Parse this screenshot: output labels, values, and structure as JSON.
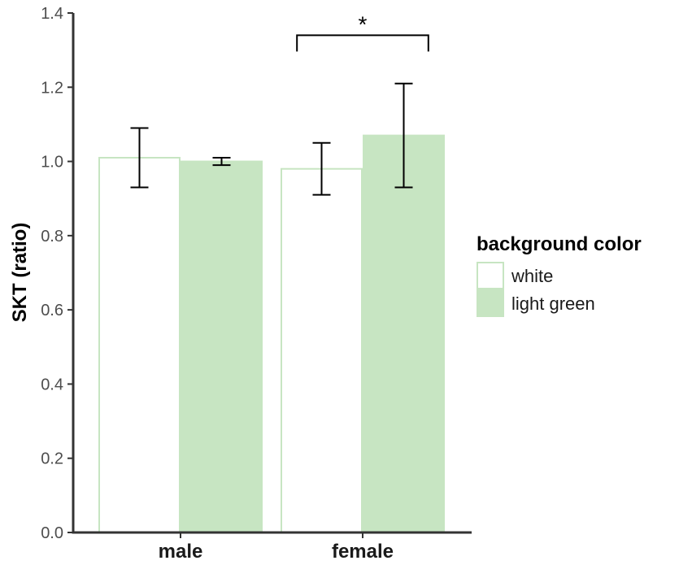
{
  "chart_data": {
    "type": "bar",
    "categories": [
      "male",
      "female"
    ],
    "ylabel": "SKT (ratio)",
    "ylim": [
      0,
      1.4
    ],
    "yticks": [
      0.0,
      0.2,
      0.4,
      0.6,
      0.8,
      1.0,
      1.2,
      1.4
    ],
    "ytick_labels": [
      "0.0",
      "0.2",
      "0.4",
      "0.6",
      "0.8",
      "1.0",
      "1.2",
      "1.4"
    ],
    "grid": false,
    "legend": {
      "title": "background color",
      "placement": "right"
    },
    "series": [
      {
        "name": "white",
        "fill": "#ffffff",
        "stroke": "#c7e5c2",
        "values": [
          1.01,
          0.98
        ],
        "error_low": [
          0.93,
          0.91
        ],
        "error_high": [
          1.09,
          1.05
        ]
      },
      {
        "name": "light green",
        "fill": "#c7e5c2",
        "stroke": "#c7e5c2",
        "values": [
          1.0,
          1.07
        ],
        "error_low": [
          0.99,
          0.93
        ],
        "error_high": [
          1.01,
          1.21
        ]
      }
    ],
    "annotations": [
      {
        "type": "significance-bracket",
        "text": "*",
        "category": "female",
        "between_series": [
          "white",
          "light green"
        ],
        "y": 1.34
      }
    ]
  }
}
